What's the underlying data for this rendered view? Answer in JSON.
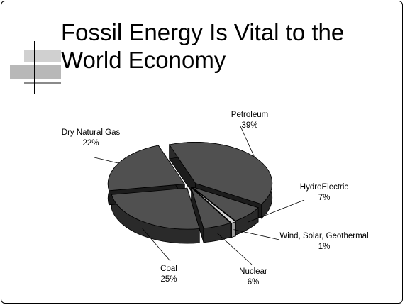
{
  "title": {
    "line1": "Fossil Energy Is Vital to the",
    "line2": "World Economy"
  },
  "chart_data": {
    "type": "pie",
    "title": "Fossil Energy Is Vital to the World Economy",
    "categories": [
      "Petroleum",
      "HydroElectric",
      "Wind, Solar, Geothermal",
      "Nuclear",
      "Coal",
      "Dry Natural Gas"
    ],
    "values": [
      39,
      7,
      1,
      6,
      25,
      22
    ],
    "value_labels": [
      "39%",
      "7%",
      "1%",
      "6%",
      "25%",
      "22%"
    ],
    "three_d": true,
    "exploded": true,
    "legend": "none",
    "colors": {
      "slice_top": "#505050",
      "slice_side": "#2a2a2a",
      "slice_side_dark": "#1c1c1c",
      "wind_slice": "#d8d8d8",
      "outline": "#000000"
    }
  }
}
